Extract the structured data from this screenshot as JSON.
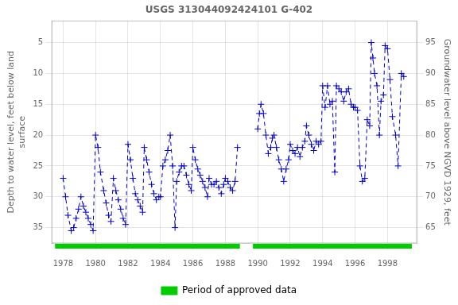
{
  "chart_data": {
    "type": "line",
    "title": "USGS 313044092424101 G-402",
    "y_label": "Depth to water level, feet below land\nsurface",
    "y2_label": "Groundwater level above NGVD 1929, feet",
    "xlim": [
      1977.3,
      1999.8
    ],
    "xticks": [
      1978,
      1980,
      1982,
      1984,
      1986,
      1988,
      1990,
      1992,
      1994,
      1996,
      1998
    ],
    "ylim": [
      37.5,
      1.5
    ],
    "yticks": [
      5,
      10,
      15,
      20,
      25,
      30,
      35
    ],
    "y2lim": [
      62.5,
      98.5
    ],
    "y2ticks": [
      65,
      70,
      75,
      80,
      85,
      90,
      95
    ],
    "grid": true,
    "legend": "bottom",
    "series": [
      {
        "color": "#0000cc",
        "marker": "plus",
        "line_style": "dashed",
        "x": [
          1978.0,
          1978.15,
          1978.3,
          1978.5,
          1978.65,
          1978.8,
          1978.95,
          1979.1,
          1979.25,
          1979.4,
          1979.55,
          1979.7,
          1979.85,
          1980.0,
          1980.15,
          1980.3,
          1980.5,
          1980.65,
          1980.8,
          1980.95,
          1981.1,
          1981.25,
          1981.4,
          1981.55,
          1981.7,
          1981.85,
          1982.0,
          1982.15,
          1982.3,
          1982.45,
          1982.6,
          1982.75,
          1982.9,
          1983.0,
          1983.15,
          1983.3,
          1983.45,
          1983.6,
          1983.75,
          1983.9,
          1984.0,
          1984.15,
          1984.3,
          1984.45,
          1984.6,
          1984.75,
          1984.9,
          1985.0,
          1985.15,
          1985.3,
          1985.45,
          1985.6,
          1985.75,
          1985.9,
          1986.0,
          1986.15,
          1986.3,
          1986.45,
          1986.6,
          1986.75,
          1986.9,
          1987.0,
          1987.15,
          1987.3,
          1987.45,
          1987.6,
          1987.75,
          1987.9,
          1988.0,
          1988.15,
          1988.3,
          1988.45,
          1988.6,
          1988.75
        ],
        "values": [
          27.0,
          30.0,
          33.0,
          35.5,
          35.0,
          33.5,
          32.0,
          30.0,
          31.5,
          32.5,
          33.5,
          34.5,
          35.5,
          20.0,
          22.0,
          26.0,
          29.0,
          31.0,
          33.0,
          34.0,
          27.0,
          29.0,
          30.5,
          32.0,
          33.5,
          34.5,
          21.5,
          24.0,
          27.0,
          29.5,
          30.5,
          31.5,
          32.5,
          22.0,
          24.0,
          26.0,
          28.0,
          29.5,
          30.5,
          30.0,
          30.0,
          25.0,
          24.0,
          22.5,
          20.0,
          25.0,
          35.0,
          27.5,
          26.0,
          25.0,
          25.0,
          26.5,
          28.0,
          29.0,
          22.0,
          24.0,
          25.5,
          26.5,
          27.5,
          28.5,
          30.0,
          27.0,
          28.0,
          28.0,
          27.5,
          28.5,
          29.5,
          28.0,
          27.0,
          27.5,
          28.5,
          29.0,
          27.5,
          22.0
        ]
      },
      {
        "color": "#0000cc",
        "marker": "plus",
        "line_style": "dashed",
        "x": [
          1990.0,
          1990.1,
          1990.2,
          1990.35,
          1990.5,
          1990.65,
          1990.8,
          1990.9,
          1991.0,
          1991.15,
          1991.3,
          1991.45,
          1991.6,
          1991.75,
          1991.9,
          1992.0,
          1992.15,
          1992.3,
          1992.45,
          1992.6,
          1992.75,
          1992.9,
          1993.0,
          1993.15,
          1993.3,
          1993.45,
          1993.6,
          1993.75,
          1993.9,
          1994.0,
          1994.15,
          1994.3,
          1994.45,
          1994.6,
          1994.75,
          1994.85,
          1995.0,
          1995.15,
          1995.3,
          1995.45,
          1995.6,
          1995.75,
          1995.9,
          1996.0,
          1996.15,
          1996.3,
          1996.45,
          1996.6,
          1996.75,
          1996.9,
          1997.0,
          1997.1,
          1997.2,
          1997.35,
          1997.5,
          1997.6,
          1997.75,
          1997.85,
          1998.0,
          1998.15,
          1998.3,
          1998.5,
          1998.65,
          1998.85,
          1999.0
        ],
        "values": [
          19.0,
          16.5,
          15.0,
          16.5,
          20.0,
          23.0,
          22.0,
          20.5,
          20.0,
          22.0,
          24.0,
          25.5,
          27.5,
          25.5,
          24.0,
          21.5,
          22.5,
          23.0,
          22.0,
          23.5,
          22.0,
          21.0,
          18.5,
          20.0,
          21.5,
          22.5,
          21.0,
          21.5,
          21.0,
          12.0,
          15.5,
          12.0,
          15.0,
          14.5,
          26.0,
          12.0,
          12.5,
          13.0,
          14.5,
          13.0,
          12.5,
          15.0,
          15.5,
          15.5,
          16.0,
          25.0,
          27.5,
          27.0,
          17.5,
          18.5,
          5.0,
          7.5,
          10.0,
          12.0,
          20.0,
          14.5,
          13.5,
          5.5,
          6.0,
          11.0,
          17.0,
          20.0,
          25.0,
          10.0,
          10.5
        ]
      }
    ],
    "approved_periods": [
      [
        1977.5,
        1988.9
      ],
      [
        1989.7,
        1999.5
      ]
    ],
    "approved_color": "#00cc00",
    "approved_label": "Period of approved data"
  }
}
